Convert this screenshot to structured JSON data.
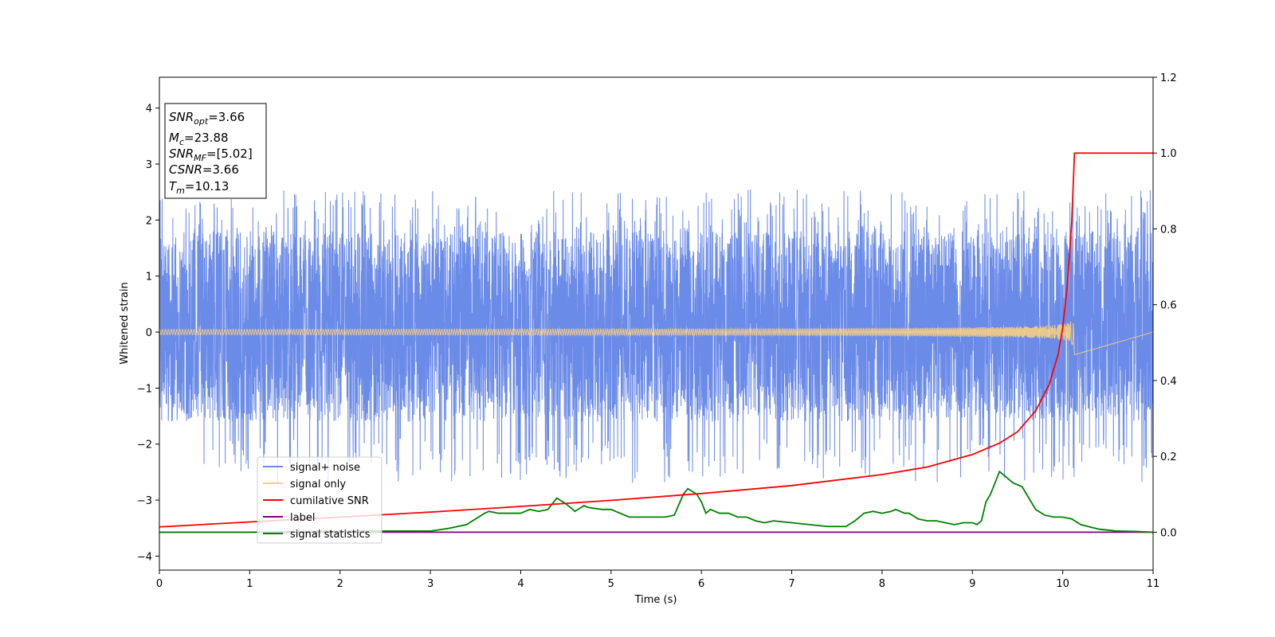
{
  "chart_data": {
    "type": "line",
    "xlabel": "Time (s)",
    "ylabel": "Whitened strain",
    "xlim": [
      0,
      11
    ],
    "ylim_left": [
      -4.25,
      4.55
    ],
    "ylim_right": [
      -0.1,
      1.2
    ],
    "xticks": [
      0,
      1,
      2,
      3,
      4,
      5,
      6,
      7,
      8,
      9,
      10,
      11
    ],
    "yticks_left": [
      -4,
      -3,
      -2,
      -1,
      0,
      1,
      2,
      3,
      4
    ],
    "yticks_right": [
      0.0,
      0.2,
      0.4,
      0.6,
      0.8,
      1.0,
      1.2
    ],
    "xtick_labels": [
      "0",
      "1",
      "2",
      "3",
      "4",
      "5",
      "6",
      "7",
      "8",
      "9",
      "10",
      "11"
    ],
    "ytick_left_labels": [
      "−4",
      "−3",
      "−2",
      "−1",
      "0",
      "1",
      "2",
      "3",
      "4"
    ],
    "ytick_right_labels": [
      "0.0",
      "0.2",
      "0.4",
      "0.6",
      "0.8",
      "1.0",
      "1.2"
    ],
    "annotation": [
      {
        "base": "SNR",
        "sub": "opt",
        "rest": "=3.66"
      },
      {
        "base": "M",
        "sub": "c",
        "rest": "=23.88"
      },
      {
        "base": "SNR",
        "sub": "MF",
        "rest": "=[5.02]"
      },
      {
        "base": "CSNR",
        "sub": "",
        "rest": "=3.66"
      },
      {
        "base": "T",
        "sub": "m",
        "rest": "=10.13"
      }
    ],
    "legend": {
      "placement": "lower-left",
      "entries": [
        {
          "name": "signal+ noise",
          "color": "#6b8be8"
        },
        {
          "name": "signal only",
          "color": "#ffd27f"
        },
        {
          "name": "cumilative SNR",
          "color": "#ff0000"
        },
        {
          "name": "label",
          "color": "#800080"
        },
        {
          "name": "signal statistics",
          "color": "#008000"
        }
      ]
    },
    "series": [
      {
        "name": "signal+ noise",
        "axis": "left",
        "color": "#6b8be8",
        "kind": "noise",
        "typical_range": [
          -1.6,
          1.8
        ],
        "extreme_range": [
          -2.7,
          2.55
        ],
        "t_range": [
          0,
          11
        ]
      },
      {
        "name": "signal only",
        "axis": "left",
        "color": "#ffd27f",
        "kind": "chirp",
        "merger_time": 10.13,
        "peak_amplitude": 0.52
      },
      {
        "name": "cumilative SNR",
        "axis": "right",
        "color": "#ff0000",
        "x": [
          0,
          1,
          2,
          3,
          4,
          5,
          6,
          7,
          8,
          8.5,
          9,
          9.3,
          9.5,
          9.7,
          9.85,
          9.95,
          10.0,
          10.05,
          10.1,
          10.13,
          11
        ],
        "y": [
          0.014,
          0.027,
          0.04,
          0.053,
          0.068,
          0.084,
          0.102,
          0.123,
          0.152,
          0.172,
          0.205,
          0.235,
          0.265,
          0.32,
          0.39,
          0.47,
          0.54,
          0.65,
          0.82,
          1.0,
          1.0
        ]
      },
      {
        "name": "label",
        "axis": "right",
        "color": "#800080",
        "x": [
          0,
          11
        ],
        "y": [
          0.0,
          0.0
        ]
      },
      {
        "name": "signal statistics",
        "axis": "right",
        "color": "#008000",
        "x": [
          0,
          1,
          2,
          2.5,
          2.8,
          3.0,
          3.2,
          3.4,
          3.5,
          3.6,
          3.65,
          3.75,
          3.9,
          4.0,
          4.1,
          4.2,
          4.3,
          4.4,
          4.5,
          4.6,
          4.7,
          4.75,
          4.9,
          5.0,
          5.2,
          5.4,
          5.6,
          5.7,
          5.8,
          5.85,
          5.95,
          6.0,
          6.05,
          6.1,
          6.2,
          6.3,
          6.4,
          6.5,
          6.6,
          6.7,
          6.8,
          7.0,
          7.2,
          7.4,
          7.6,
          7.7,
          7.8,
          7.9,
          8.0,
          8.1,
          8.15,
          8.25,
          8.3,
          8.4,
          8.5,
          8.6,
          8.7,
          8.8,
          8.9,
          9.0,
          9.05,
          9.1,
          9.15,
          9.2,
          9.3,
          9.35,
          9.45,
          9.55,
          9.6,
          9.7,
          9.8,
          9.9,
          10.0,
          10.1,
          10.2,
          10.4,
          10.6,
          10.8,
          11.0
        ],
        "y": [
          0.0,
          0.0,
          0.003,
          0.003,
          0.003,
          0.003,
          0.01,
          0.02,
          0.035,
          0.05,
          0.055,
          0.05,
          0.05,
          0.05,
          0.06,
          0.055,
          0.06,
          0.09,
          0.075,
          0.055,
          0.07,
          0.065,
          0.06,
          0.06,
          0.04,
          0.04,
          0.04,
          0.045,
          0.1,
          0.115,
          0.1,
          0.08,
          0.05,
          0.06,
          0.05,
          0.05,
          0.04,
          0.04,
          0.03,
          0.025,
          0.03,
          0.025,
          0.02,
          0.015,
          0.015,
          0.03,
          0.05,
          0.055,
          0.05,
          0.055,
          0.06,
          0.05,
          0.05,
          0.035,
          0.03,
          0.03,
          0.025,
          0.02,
          0.025,
          0.025,
          0.02,
          0.03,
          0.08,
          0.1,
          0.16,
          0.15,
          0.13,
          0.12,
          0.1,
          0.06,
          0.045,
          0.04,
          0.04,
          0.035,
          0.02,
          0.008,
          0.003,
          0.002,
          0.0
        ]
      }
    ]
  }
}
